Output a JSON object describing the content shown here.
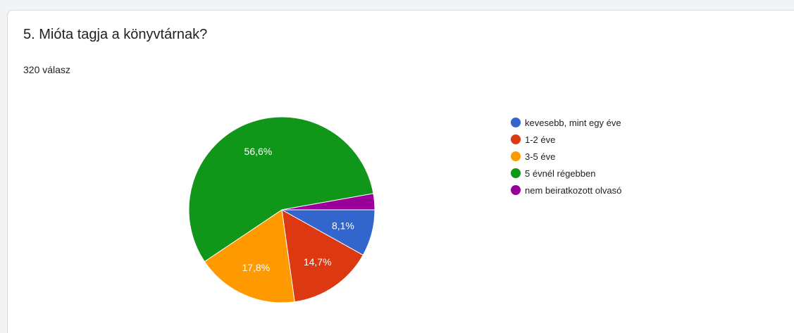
{
  "question": {
    "title": "5. Mióta tagja a könyvtárnak?",
    "response_count": "320 válasz"
  },
  "chart_data": {
    "type": "pie",
    "labels": [
      "kevesebb, mint egy éve",
      "1-2 éve",
      "3-5 éve",
      "5 évnél régebben",
      "nem beiratkozott olvasó"
    ],
    "values": [
      8.1,
      14.7,
      17.8,
      56.6,
      2.8
    ],
    "display_labels": [
      "8,1%",
      "14,7%",
      "17,8%",
      "56,6%",
      ""
    ],
    "colors": [
      "#3366cc",
      "#dc3912",
      "#ff9900",
      "#109618",
      "#990099"
    ],
    "start": "3 o'clock, clockwise",
    "legend_position": "right"
  }
}
